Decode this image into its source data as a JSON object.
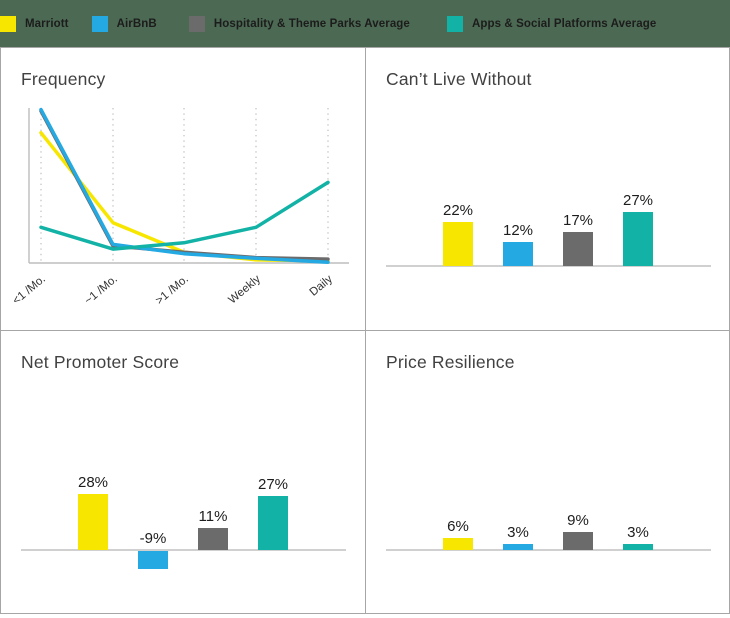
{
  "legend": {
    "background": "#4c6a53",
    "items": [
      {
        "key": "marriott",
        "label": "Marriott",
        "color": "#f7e600"
      },
      {
        "key": "airbnb",
        "label": "AirBnB",
        "color": "#24a9e2"
      },
      {
        "key": "hospitality",
        "label": "Hospitality & Theme Parks Average",
        "color": "#6b6b6b"
      },
      {
        "key": "apps",
        "label": "Apps & Social Platforms Average",
        "color": "#12b2a6"
      }
    ]
  },
  "panels": {
    "frequency": {
      "title": "Frequency"
    },
    "cant_live_without": {
      "title": "Can’t Live Without"
    },
    "net_promoter": {
      "title": "Net Promoter Score"
    },
    "price_resilience": {
      "title": "Price Resilience"
    }
  },
  "chart_data": [
    {
      "type": "line",
      "title": "Frequency",
      "categories": [
        "<1 /Mo.",
        "~1 /Mo.",
        ">1 /Mo.",
        "Weekly",
        "Daily"
      ],
      "ylim": [
        0,
        100
      ],
      "grid": "vertical-dotted",
      "legend_position": "top-bar",
      "series": [
        {
          "name": "Marriott",
          "color": "marriott",
          "values": [
            84,
            26,
            7,
            2,
            1.5
          ]
        },
        {
          "name": "Hospitality & Theme Parks Average",
          "color": "hospitality",
          "values": [
            98,
            11,
            7,
            3.5,
            2.5
          ]
        },
        {
          "name": "AirBnB",
          "color": "airbnb",
          "values": [
            99,
            12,
            6,
            3,
            0.5
          ]
        },
        {
          "name": "Apps & Social Platforms Average",
          "color": "apps",
          "values": [
            23,
            9,
            13,
            23,
            52
          ]
        }
      ]
    },
    {
      "type": "bar",
      "title": "Can’t Live Without",
      "categories": [
        "Marriott",
        "AirBnB",
        "Hospitality & Theme Parks Average",
        "Apps & Social Platforms Average"
      ],
      "colors": [
        "marriott",
        "airbnb",
        "hospitality",
        "apps"
      ],
      "values": [
        22,
        12,
        17,
        27
      ],
      "labels": [
        "22%",
        "12%",
        "17%",
        "27%"
      ],
      "ylim": [
        0,
        100
      ]
    },
    {
      "type": "bar",
      "title": "Net Promoter Score",
      "categories": [
        "Marriott",
        "AirBnB",
        "Hospitality & Theme Parks Average",
        "Apps & Social Platforms Average"
      ],
      "colors": [
        "marriott",
        "airbnb",
        "hospitality",
        "apps"
      ],
      "values": [
        28,
        -9,
        11,
        27
      ],
      "labels": [
        "28%",
        "-9%",
        "11%",
        "27%"
      ],
      "ylim": [
        -20,
        100
      ]
    },
    {
      "type": "bar",
      "title": "Price Resilience",
      "categories": [
        "Marriott",
        "AirBnB",
        "Hospitality & Theme Parks Average",
        "Apps & Social Platforms Average"
      ],
      "colors": [
        "marriott",
        "airbnb",
        "hospitality",
        "apps"
      ],
      "values": [
        6,
        3,
        9,
        3
      ],
      "labels": [
        "6%",
        "3%",
        "9%",
        "3%"
      ],
      "ylim": [
        0,
        100
      ]
    }
  ],
  "style_colors": {
    "axis": "#bdbdbd",
    "gridline": "#c9c9c9",
    "baseline": "#c0c0c0",
    "title_text": "#414141",
    "label_text": "#1d1d1d",
    "tick_text": "#333333",
    "panel_border": "#a6a6a6"
  }
}
